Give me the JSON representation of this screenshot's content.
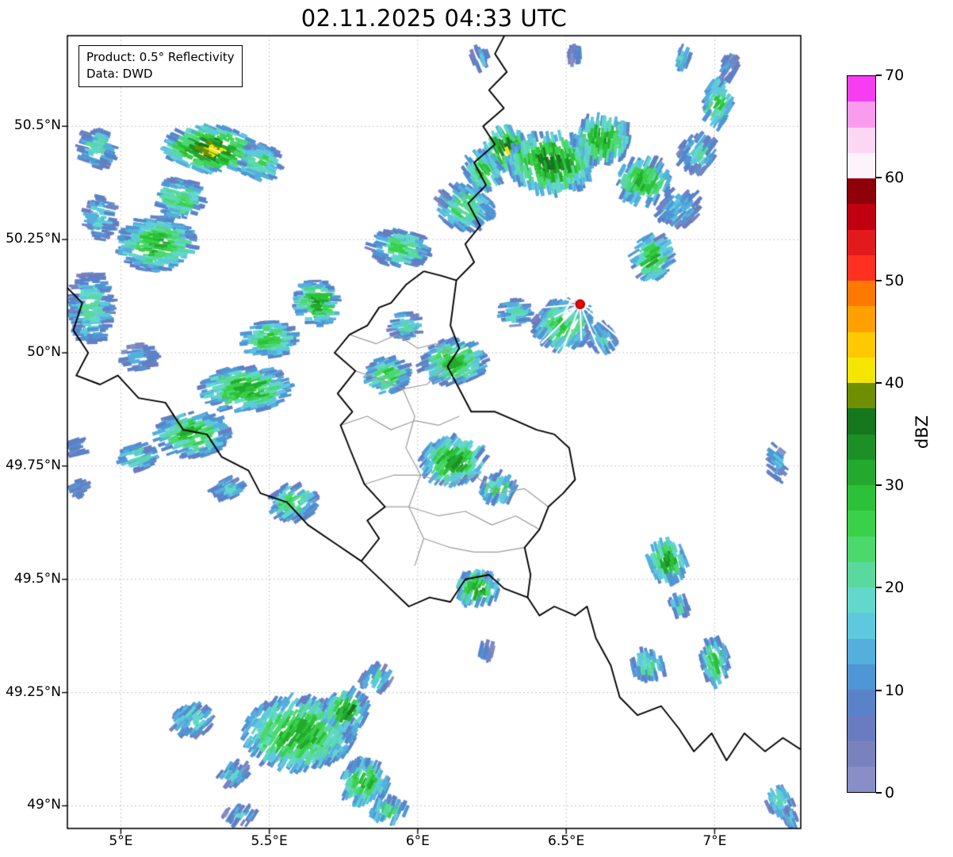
{
  "title": "02.11.2025 04:33 UTC",
  "info_box": {
    "line1": "Product: 0.5° Reflectivity",
    "line2": "Data: DWD"
  },
  "colorbar": {
    "label": "dBZ",
    "vmin": 0,
    "vmax": 70,
    "ticks": [
      0,
      10,
      20,
      30,
      40,
      50,
      60,
      70
    ],
    "colors": [
      "#8a8ec6",
      "#7a82be",
      "#6a7cc0",
      "#5a82c8",
      "#4f96d4",
      "#55afdd",
      "#5ec8de",
      "#62d8cb",
      "#5ad99e",
      "#4bd96e",
      "#38d149",
      "#2bc138",
      "#23aa2e",
      "#1c9026",
      "#15771e",
      "#6f8f00",
      "#f5e500",
      "#ffc800",
      "#ffa000",
      "#ff7800",
      "#ff3020",
      "#e31a1c",
      "#c00010",
      "#8f0009",
      "#fdf3fb",
      "#fcd7f3",
      "#fa9cee",
      "#f63df2"
    ]
  },
  "map": {
    "lon_min": 4.82,
    "lon_max": 7.29,
    "lat_min": 48.95,
    "lat_max": 50.7,
    "grid_color": "#c4c4c4",
    "border_color": "#000000",
    "district_color": "#9a9a9a",
    "xticks": [
      {
        "value": 5.0,
        "label": "5°E"
      },
      {
        "value": 5.5,
        "label": "5.5°E"
      },
      {
        "value": 6.0,
        "label": "6°E"
      },
      {
        "value": 6.5,
        "label": "6.5°E"
      },
      {
        "value": 7.0,
        "label": "7°E"
      }
    ],
    "yticks": [
      {
        "value": 49.0,
        "label": "49°N"
      },
      {
        "value": 49.25,
        "label": "49.25°N"
      },
      {
        "value": 49.5,
        "label": "49.5°N"
      },
      {
        "value": 49.75,
        "label": "49.75°N"
      },
      {
        "value": 50.0,
        "label": "50°N"
      },
      {
        "value": 50.25,
        "label": "50.25°N"
      },
      {
        "value": 50.5,
        "label": "50.5°N"
      }
    ],
    "radar_site": {
      "lon": 6.547,
      "lat": 50.107,
      "marker_color": "#ff0000",
      "marker_edge": "#8b0000",
      "spoke_color": "#ffffff"
    }
  },
  "borders": {
    "luxembourg": [
      [
        6.02,
        50.18
      ],
      [
        6.08,
        50.17
      ],
      [
        6.13,
        50.16
      ],
      [
        6.11,
        50.06
      ],
      [
        6.14,
        50.01
      ],
      [
        6.1,
        49.97
      ],
      [
        6.14,
        49.92
      ],
      [
        6.18,
        49.87
      ],
      [
        6.26,
        49.87
      ],
      [
        6.33,
        49.85
      ],
      [
        6.4,
        49.83
      ],
      [
        6.46,
        49.82
      ],
      [
        6.51,
        49.79
      ],
      [
        6.53,
        49.72
      ],
      [
        6.49,
        49.69
      ],
      [
        6.44,
        49.66
      ],
      [
        6.41,
        49.61
      ],
      [
        6.36,
        49.57
      ],
      [
        6.38,
        49.51
      ],
      [
        6.37,
        49.46
      ],
      [
        6.29,
        49.48
      ],
      [
        6.24,
        49.51
      ],
      [
        6.16,
        49.5
      ],
      [
        6.11,
        49.45
      ],
      [
        6.04,
        49.46
      ],
      [
        5.97,
        49.44
      ],
      [
        5.89,
        49.49
      ],
      [
        5.81,
        49.54
      ],
      [
        5.87,
        49.59
      ],
      [
        5.83,
        49.63
      ],
      [
        5.89,
        49.66
      ],
      [
        5.82,
        49.71
      ],
      [
        5.77,
        49.79
      ],
      [
        5.74,
        49.84
      ],
      [
        5.78,
        49.87
      ],
      [
        5.73,
        49.91
      ],
      [
        5.79,
        49.96
      ],
      [
        5.72,
        50.0
      ],
      [
        5.77,
        50.04
      ],
      [
        5.83,
        50.06
      ],
      [
        5.87,
        50.1
      ],
      [
        5.91,
        50.11
      ],
      [
        5.96,
        50.15
      ],
      [
        6.02,
        50.18
      ]
    ],
    "belgium_germany": [
      [
        6.13,
        50.16
      ],
      [
        6.19,
        50.2
      ],
      [
        6.16,
        50.24
      ],
      [
        6.21,
        50.28
      ],
      [
        6.17,
        50.33
      ],
      [
        6.23,
        50.37
      ],
      [
        6.19,
        50.42
      ],
      [
        6.26,
        50.46
      ],
      [
        6.22,
        50.5
      ],
      [
        6.29,
        50.54
      ],
      [
        6.24,
        50.58
      ],
      [
        6.3,
        50.62
      ],
      [
        6.26,
        50.66
      ],
      [
        6.3,
        50.71
      ]
    ],
    "belgium_france": [
      [
        4.81,
        50.15
      ],
      [
        4.87,
        50.11
      ],
      [
        4.84,
        50.05
      ],
      [
        4.89,
        50.0
      ],
      [
        4.85,
        49.95
      ],
      [
        4.93,
        49.93
      ],
      [
        4.99,
        49.95
      ],
      [
        5.06,
        49.9
      ],
      [
        5.15,
        49.89
      ],
      [
        5.21,
        49.83
      ],
      [
        5.29,
        49.82
      ],
      [
        5.34,
        49.77
      ],
      [
        5.43,
        49.74
      ],
      [
        5.47,
        49.69
      ],
      [
        5.56,
        49.67
      ],
      [
        5.63,
        49.62
      ],
      [
        5.72,
        49.58
      ],
      [
        5.81,
        49.54
      ]
    ],
    "france_germany": [
      [
        6.37,
        49.46
      ],
      [
        6.41,
        49.42
      ],
      [
        6.46,
        49.44
      ],
      [
        6.53,
        49.42
      ],
      [
        6.57,
        49.44
      ],
      [
        6.6,
        49.37
      ],
      [
        6.65,
        49.31
      ],
      [
        6.68,
        49.24
      ],
      [
        6.74,
        49.2
      ],
      [
        6.82,
        49.22
      ],
      [
        6.88,
        49.17
      ],
      [
        6.93,
        49.12
      ],
      [
        6.99,
        49.16
      ],
      [
        7.04,
        49.1
      ],
      [
        7.1,
        49.16
      ],
      [
        7.17,
        49.12
      ],
      [
        7.23,
        49.15
      ],
      [
        7.3,
        49.12
      ]
    ],
    "districts": [
      [
        [
          5.77,
          50.04
        ],
        [
          5.86,
          50.02
        ],
        [
          5.93,
          50.04
        ],
        [
          6.0,
          50.01
        ],
        [
          6.06,
          50.02
        ],
        [
          6.11,
          50.0
        ]
      ],
      [
        [
          5.79,
          49.96
        ],
        [
          5.88,
          49.94
        ],
        [
          5.95,
          49.92
        ],
        [
          6.03,
          49.93
        ],
        [
          6.1,
          49.97
        ]
      ],
      [
        [
          5.74,
          49.84
        ],
        [
          5.83,
          49.86
        ],
        [
          5.91,
          49.83
        ],
        [
          5.99,
          49.85
        ],
        [
          6.07,
          49.84
        ],
        [
          6.14,
          49.86
        ]
      ],
      [
        [
          5.95,
          49.92
        ],
        [
          5.99,
          49.86
        ],
        [
          5.96,
          49.79
        ],
        [
          6.01,
          49.73
        ],
        [
          5.97,
          49.66
        ],
        [
          6.02,
          49.59
        ],
        [
          5.99,
          49.53
        ]
      ],
      [
        [
          5.82,
          49.71
        ],
        [
          5.92,
          49.73
        ],
        [
          6.01,
          49.73
        ]
      ],
      [
        [
          6.01,
          49.73
        ],
        [
          6.1,
          49.71
        ],
        [
          6.19,
          49.73
        ],
        [
          6.27,
          49.69
        ],
        [
          6.36,
          49.7
        ],
        [
          6.44,
          49.66
        ]
      ],
      [
        [
          5.97,
          49.66
        ],
        [
          6.07,
          49.64
        ],
        [
          6.16,
          49.65
        ],
        [
          6.25,
          49.62
        ],
        [
          6.33,
          49.64
        ],
        [
          6.41,
          49.61
        ]
      ],
      [
        [
          6.02,
          49.59
        ],
        [
          6.11,
          49.57
        ],
        [
          6.19,
          49.56
        ],
        [
          6.27,
          49.56
        ],
        [
          6.36,
          49.57
        ]
      ],
      [
        [
          5.89,
          49.66
        ],
        [
          5.97,
          49.66
        ]
      ]
    ]
  },
  "chart_data": {
    "type": "heatmap",
    "title": "02.11.2025 04:33 UTC",
    "product": "0.5° Reflectivity",
    "source": "DWD",
    "unit": "dBZ",
    "scale_range": [
      0,
      70
    ],
    "echo_cells_format": "[lon_deg, lat_deg, extent_lon_deg, extent_lat_deg, peak_dbz]",
    "echo_cells": [
      [
        5.3,
        50.45,
        0.3,
        0.1,
        40
      ],
      [
        5.47,
        50.42,
        0.14,
        0.08,
        26
      ],
      [
        5.2,
        50.34,
        0.16,
        0.09,
        26
      ],
      [
        5.12,
        50.24,
        0.26,
        0.12,
        30
      ],
      [
        4.92,
        50.45,
        0.12,
        0.09,
        22
      ],
      [
        4.93,
        50.3,
        0.1,
        0.1,
        18
      ],
      [
        4.9,
        50.1,
        0.14,
        0.16,
        22
      ],
      [
        5.06,
        49.99,
        0.12,
        0.06,
        14
      ],
      [
        5.66,
        50.11,
        0.14,
        0.1,
        33
      ],
      [
        5.5,
        50.03,
        0.18,
        0.08,
        28
      ],
      [
        5.42,
        49.92,
        0.3,
        0.1,
        32
      ],
      [
        5.24,
        49.82,
        0.24,
        0.1,
        30
      ],
      [
        5.06,
        49.77,
        0.12,
        0.06,
        22
      ],
      [
        5.58,
        49.67,
        0.16,
        0.08,
        26
      ],
      [
        5.36,
        49.7,
        0.1,
        0.05,
        18
      ],
      [
        4.85,
        49.79,
        0.05,
        0.05,
        12
      ],
      [
        4.86,
        49.7,
        0.05,
        0.04,
        14
      ],
      [
        5.94,
        50.23,
        0.2,
        0.08,
        26
      ],
      [
        6.12,
        49.98,
        0.22,
        0.1,
        30
      ],
      [
        5.9,
        49.95,
        0.14,
        0.08,
        28
      ],
      [
        5.96,
        50.06,
        0.1,
        0.06,
        22
      ],
      [
        6.3,
        50.45,
        0.14,
        0.09,
        41
      ],
      [
        6.45,
        50.42,
        0.3,
        0.13,
        36
      ],
      [
        6.62,
        50.47,
        0.2,
        0.1,
        33
      ],
      [
        6.76,
        50.38,
        0.18,
        0.1,
        31
      ],
      [
        6.16,
        50.32,
        0.18,
        0.1,
        26
      ],
      [
        6.22,
        50.4,
        0.12,
        0.08,
        30
      ],
      [
        6.88,
        50.32,
        0.14,
        0.08,
        16
      ],
      [
        6.94,
        50.44,
        0.12,
        0.08,
        20
      ],
      [
        7.01,
        50.55,
        0.09,
        0.11,
        28
      ],
      [
        6.89,
        50.65,
        0.05,
        0.04,
        24
      ],
      [
        7.05,
        50.63,
        0.06,
        0.05,
        14
      ],
      [
        6.21,
        50.65,
        0.06,
        0.04,
        16
      ],
      [
        6.53,
        50.66,
        0.05,
        0.03,
        12
      ],
      [
        6.79,
        50.21,
        0.13,
        0.1,
        30
      ],
      [
        6.49,
        50.06,
        0.2,
        0.11,
        28
      ],
      [
        6.33,
        50.09,
        0.1,
        0.06,
        22
      ],
      [
        6.62,
        50.03,
        0.1,
        0.06,
        20
      ],
      [
        6.12,
        49.76,
        0.22,
        0.1,
        33
      ],
      [
        6.27,
        49.7,
        0.12,
        0.06,
        26
      ],
      [
        6.2,
        49.48,
        0.15,
        0.07,
        33
      ],
      [
        6.23,
        49.34,
        0.05,
        0.03,
        12
      ],
      [
        6.84,
        49.54,
        0.13,
        0.09,
        33
      ],
      [
        6.88,
        49.44,
        0.07,
        0.04,
        20
      ],
      [
        6.78,
        49.31,
        0.12,
        0.06,
        24
      ],
      [
        7.0,
        49.32,
        0.09,
        0.1,
        28
      ],
      [
        7.21,
        49.76,
        0.05,
        0.08,
        15
      ],
      [
        5.6,
        49.16,
        0.38,
        0.16,
        32
      ],
      [
        5.76,
        49.21,
        0.14,
        0.09,
        35
      ],
      [
        5.82,
        49.05,
        0.16,
        0.1,
        30
      ],
      [
        5.9,
        48.99,
        0.12,
        0.05,
        26
      ],
      [
        5.24,
        49.19,
        0.14,
        0.07,
        20
      ],
      [
        5.38,
        49.07,
        0.1,
        0.05,
        18
      ],
      [
        5.86,
        49.28,
        0.1,
        0.05,
        22
      ],
      [
        5.4,
        48.98,
        0.1,
        0.04,
        18
      ],
      [
        7.22,
        49.01,
        0.09,
        0.06,
        22
      ],
      [
        7.26,
        48.97,
        0.06,
        0.04,
        16
      ]
    ]
  }
}
